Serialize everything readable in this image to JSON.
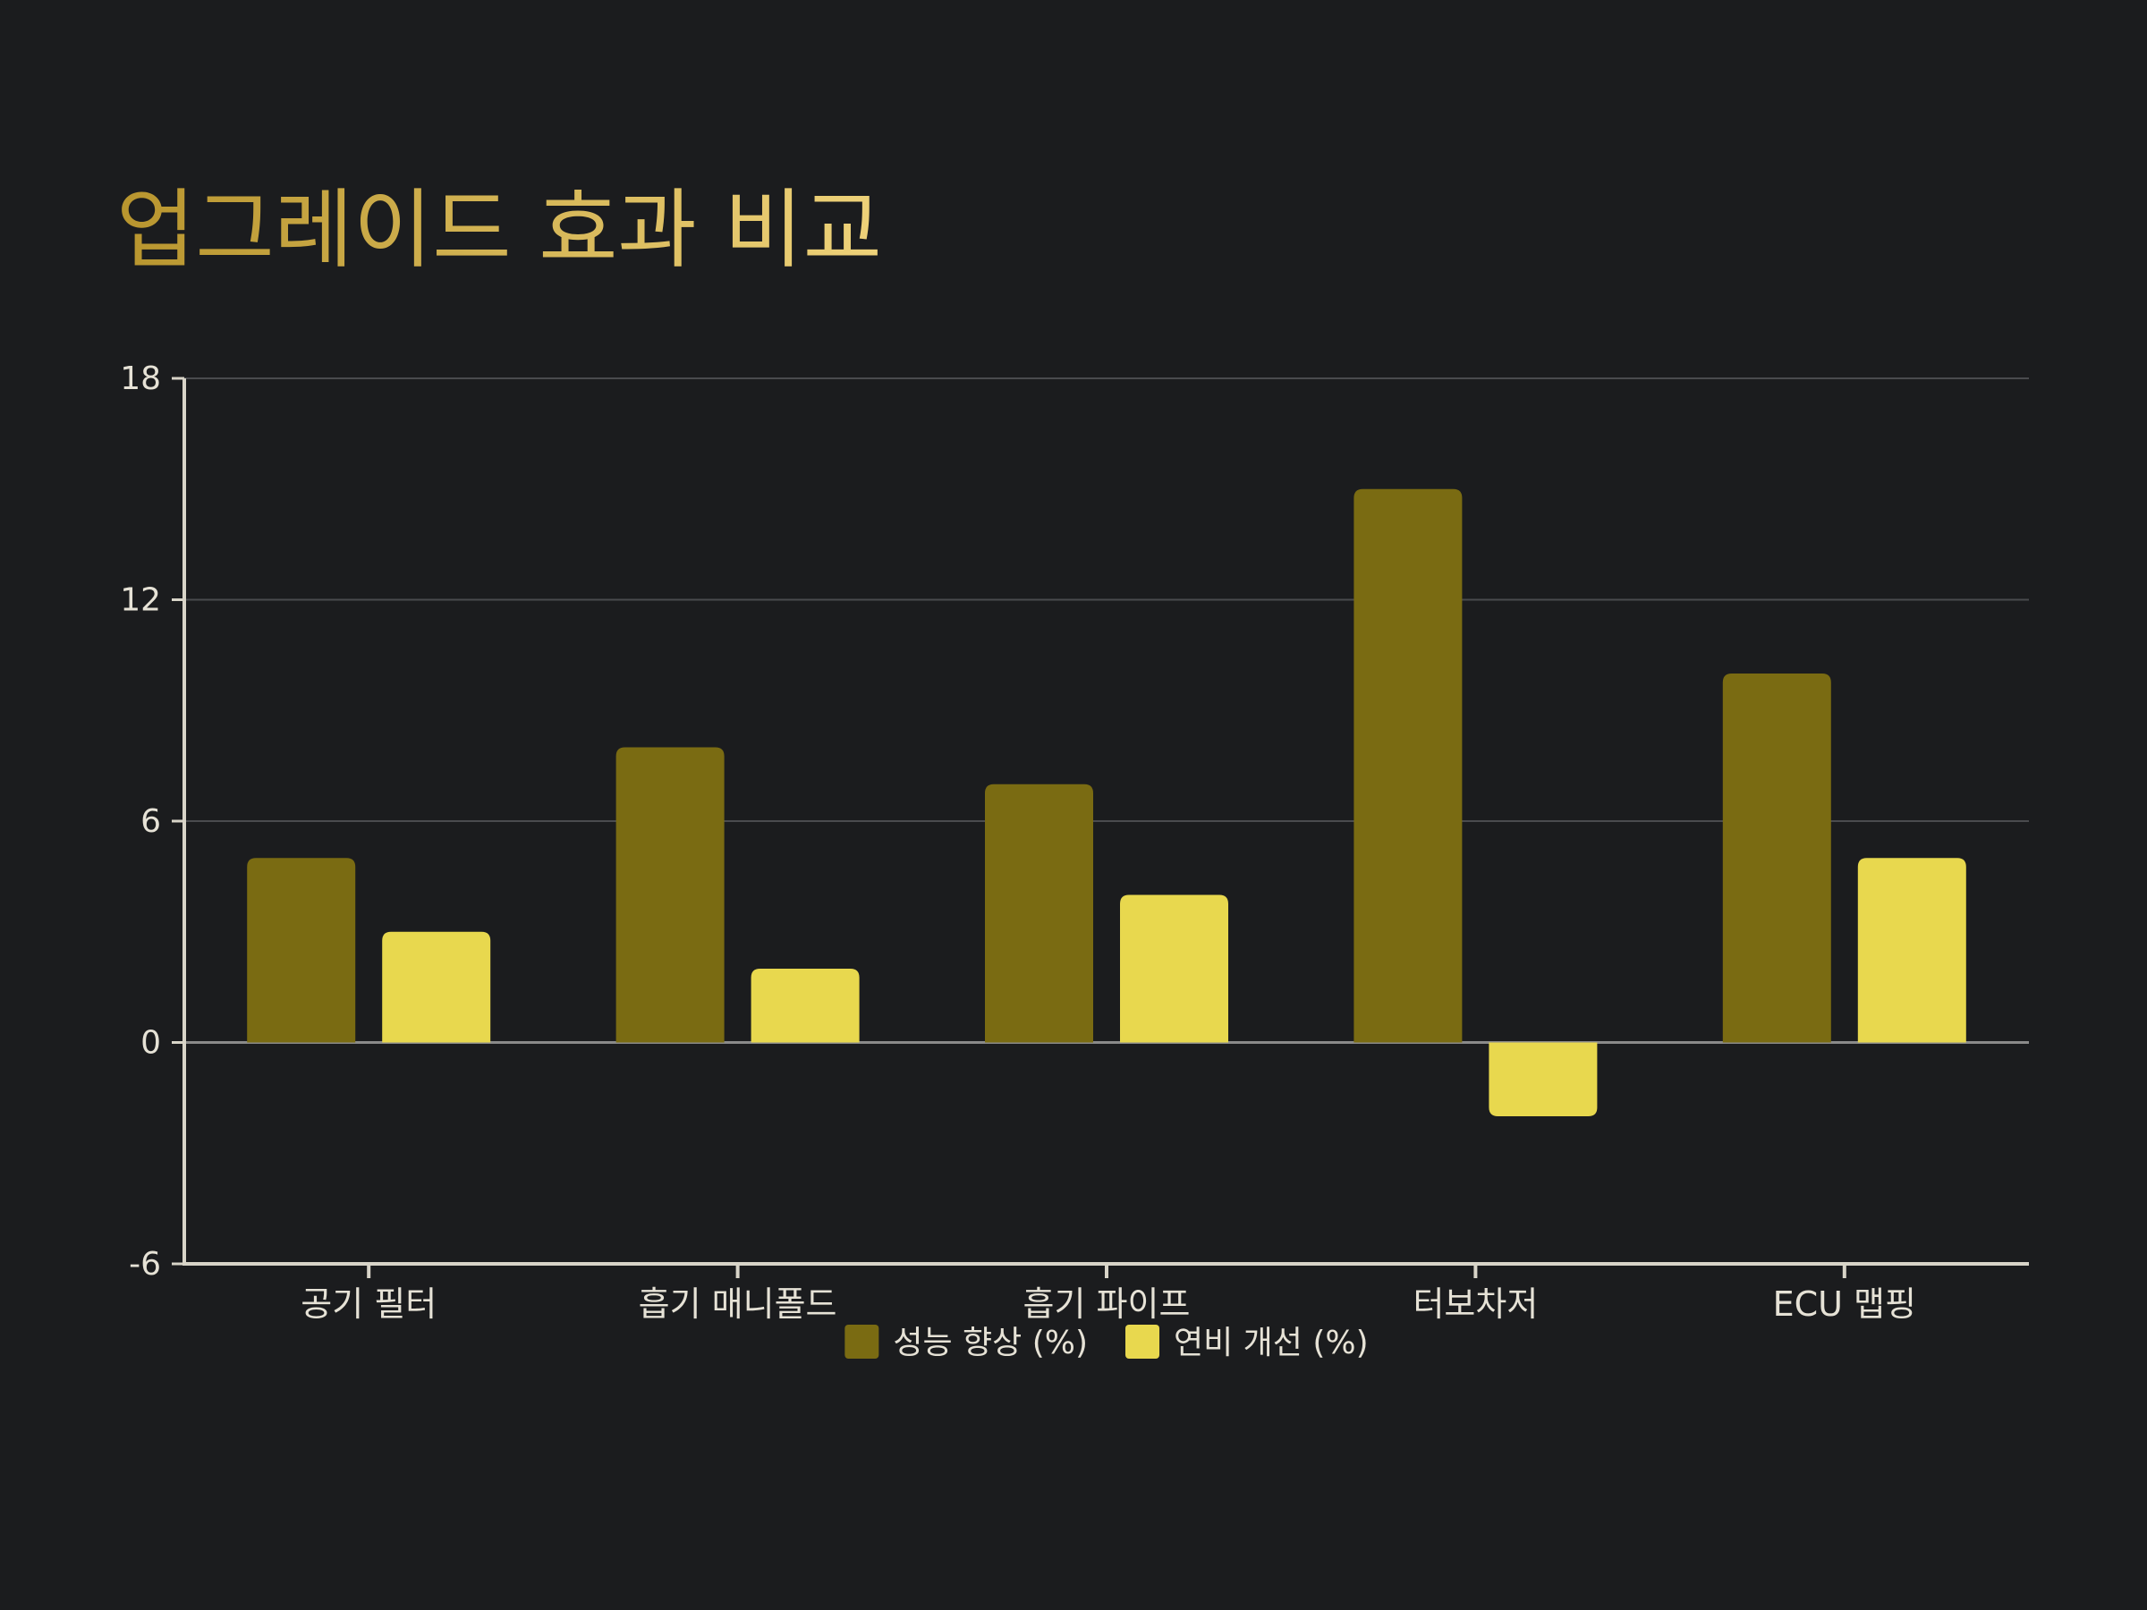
{
  "chart_data": {
    "type": "bar",
    "title": "업그레이드 효과 비교",
    "xlabel": "",
    "ylabel": "",
    "categories": [
      "공기 필터",
      "흡기 매니폴드",
      "흡기 파이프",
      "터보차저",
      "ECU 맵핑"
    ],
    "series": [
      {
        "name": "성능 향상 (%)",
        "color": "#7a6b12",
        "values": [
          5,
          8,
          7,
          15,
          10
        ]
      },
      {
        "name": "연비 개선 (%)",
        "color": "#e8d84e",
        "values": [
          3,
          2,
          4,
          -2,
          5
        ]
      }
    ],
    "ylim": [
      -6,
      18
    ],
    "yticks": [
      "-6",
      "0",
      "6",
      "12",
      "18"
    ],
    "grid": true,
    "legend_position": "bottom"
  },
  "colors": {
    "background": "#1b1c1e",
    "title_gradient_start": "#b8952e",
    "title_gradient_end": "#eed27a",
    "axis": "#d8d4c8",
    "grid": "#4a4b4e"
  }
}
